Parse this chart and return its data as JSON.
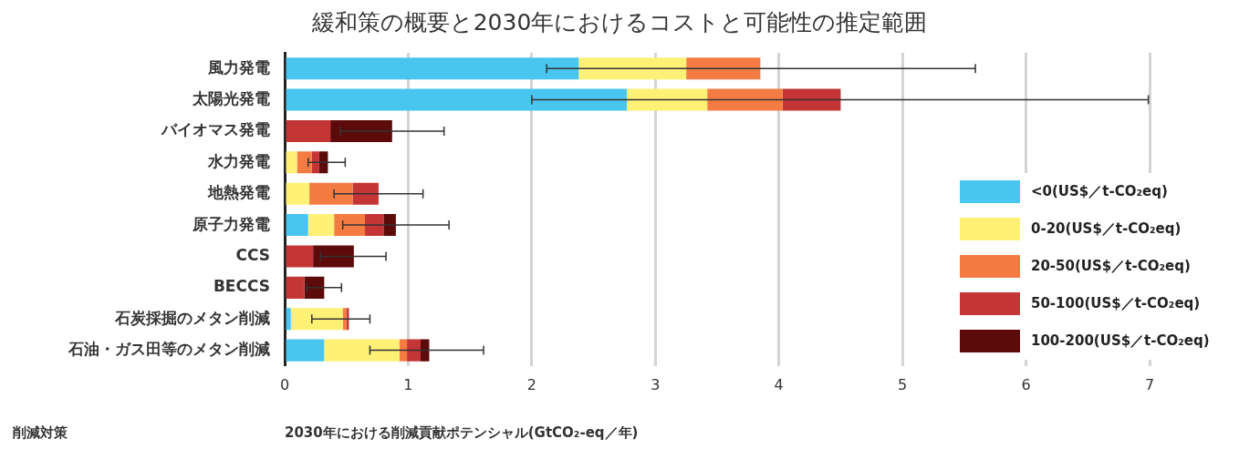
{
  "chart_data": {
    "type": "bar",
    "orientation": "horizontal",
    "stacked": true,
    "title": "緩和策の概要と2030年におけるコストと可能性の推定範囲",
    "xlabel": "2030年における削減貢献ポテンシャル(GtCO₂-eq／年)",
    "ylabel": "削減対策",
    "categories": [
      "風力発電",
      "太陽光発電",
      "バイオマス発電",
      "水力発電",
      "地熱発電",
      "原子力発電",
      "CCS",
      "BECCS",
      "石炭採掘のメタン削減",
      "石油・ガス田等のメタン削減"
    ],
    "series": [
      {
        "name": "<0(US$／t-CO₂eq)",
        "color": "#48c6ef",
        "values": [
          2.38,
          2.77,
          0,
          0,
          0,
          0.19,
          0,
          0,
          0.05,
          0.32
        ]
      },
      {
        "name": "0-20(US$／t-CO₂eq)",
        "color": "#fff176",
        "values": [
          0.87,
          0.65,
          0,
          0.1,
          0.2,
          0.21,
          0,
          0,
          0.42,
          0.61
        ]
      },
      {
        "name": "20-50(US$／t-CO₂eq)",
        "color": "#f47c42",
        "values": [
          0.6,
          0.61,
          0,
          0.12,
          0.35,
          0.25,
          0,
          0,
          0.03,
          0.06
        ]
      },
      {
        "name": "50-100(US$／t-CO₂eq)",
        "color": "#c43535",
        "values": [
          0,
          0.47,
          0.37,
          0.06,
          0.21,
          0.15,
          0.23,
          0.16,
          0.02,
          0.11
        ]
      },
      {
        "name": "100-200(US$／t-CO₂eq)",
        "color": "#5c0a0a",
        "values": [
          0,
          0,
          0.5,
          0.07,
          0,
          0.1,
          0.33,
          0.16,
          0,
          0.07
        ],
        "errors": [
          [
            2.12,
            5.59
          ],
          [
            2.0,
            6.99
          ],
          [
            0.45,
            1.29
          ],
          [
            0.19,
            0.49
          ],
          [
            0.4,
            1.12
          ],
          [
            0.47,
            1.33
          ],
          [
            0.29,
            0.82
          ],
          [
            0.18,
            0.46
          ],
          [
            0.22,
            0.69
          ],
          [
            0.69,
            1.61
          ]
        ]
      }
    ],
    "xlim": [
      0,
      7
    ],
    "xticks": [
      0,
      1,
      2,
      3,
      4,
      5,
      6,
      7
    ],
    "grid": "x",
    "legend": "right"
  }
}
